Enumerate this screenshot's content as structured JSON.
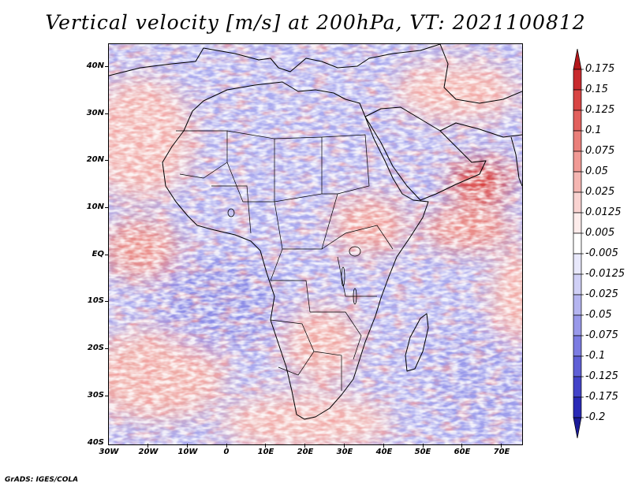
{
  "title": "Vertical velocity [m/s] at 200hPa, VT: 2021100812",
  "footer": "GrADS: IGES/COLA",
  "y_axis_labels": [
    "40N",
    "30N",
    "20N",
    "10N",
    "EQ",
    "10S",
    "20S",
    "30S",
    "40S"
  ],
  "x_axis_labels": [
    "30W",
    "20W",
    "10W",
    "0",
    "10E",
    "20E",
    "30E",
    "40E",
    "50E",
    "60E",
    "70E"
  ],
  "colorbar": {
    "labels": [
      "0.175",
      "0.15",
      "0.125",
      "0.1",
      "0.075",
      "0.05",
      "0.025",
      "0.0125",
      "0.005",
      "-0.005",
      "-0.0125",
      "-0.025",
      "-0.05",
      "-0.075",
      "-0.1",
      "-0.125",
      "-0.175",
      "-0.2"
    ],
    "colors": [
      "#b3171b",
      "#c82a2e",
      "#d84544",
      "#e2605d",
      "#ea7f7a",
      "#f19a95",
      "#f5b6b2",
      "#f9d3d1",
      "#fdeceb",
      "#ffffff",
      "#e8e8fb",
      "#d0d0f6",
      "#b5b5f0",
      "#9999ea",
      "#7c7ce2",
      "#5f5fd6",
      "#4343c9",
      "#2a2ab7",
      "#1b1b99"
    ]
  }
}
